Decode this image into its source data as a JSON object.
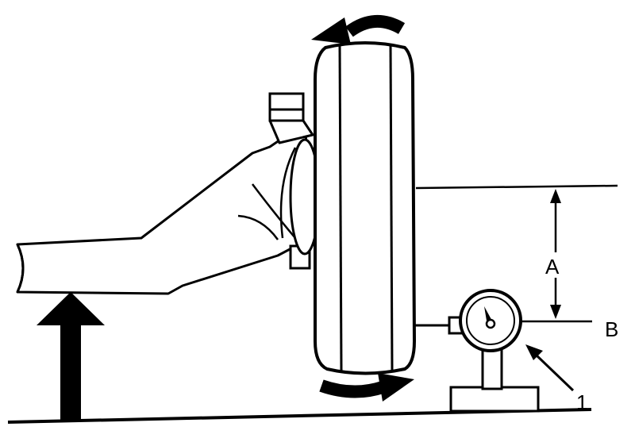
{
  "labels": {
    "a": "A",
    "b": "B",
    "callout": "1"
  },
  "colors": {
    "ink": "#000000",
    "paper": "#ffffff"
  }
}
